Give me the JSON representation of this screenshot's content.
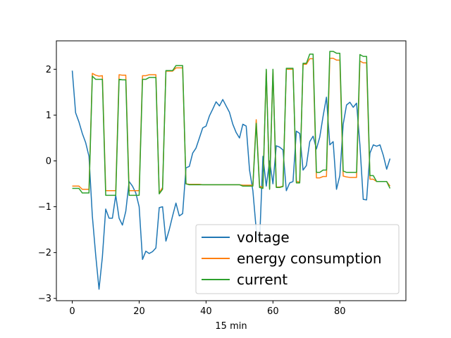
{
  "chart_data": {
    "type": "line",
    "title": "",
    "xlabel": "15 min",
    "ylabel": "",
    "xlim": [
      -4.75,
      99.75
    ],
    "ylim": [
      -3.05,
      2.62
    ],
    "xticks": [
      0,
      20,
      40,
      60,
      80
    ],
    "yticks": [
      -3,
      -2,
      -1,
      0,
      1,
      2
    ],
    "grid": false,
    "legend_position": "lower-right",
    "series": [
      {
        "name": "voltage",
        "color": "#1f77b4",
        "x": [
          0,
          1,
          2,
          3,
          4,
          5,
          6,
          7,
          8,
          9,
          10,
          11,
          12,
          13,
          14,
          15,
          16,
          17,
          18,
          19,
          20,
          21,
          22,
          23,
          24,
          25,
          26,
          27,
          28,
          29,
          30,
          31,
          32,
          33,
          34,
          35,
          36,
          37,
          38,
          39,
          40,
          41,
          42,
          43,
          44,
          45,
          46,
          47,
          48,
          49,
          50,
          51,
          52,
          53,
          54,
          55,
          56,
          57,
          58,
          59,
          60,
          61,
          62,
          63,
          64,
          65,
          66,
          67,
          68,
          69,
          70,
          71,
          72,
          73,
          74,
          75,
          76,
          77,
          78,
          79,
          80,
          81,
          82,
          83,
          84,
          85,
          86,
          87,
          88,
          89,
          90,
          91,
          92,
          93,
          94,
          95
        ],
        "values": [
          1.97,
          1.05,
          0.85,
          0.6,
          0.4,
          0.1,
          -1.2,
          -2.05,
          -2.8,
          -2.1,
          -1.05,
          -1.25,
          -1.25,
          -0.75,
          -1.25,
          -1.4,
          -1.1,
          -0.45,
          -0.55,
          -0.7,
          -1.0,
          -2.15,
          -1.97,
          -2.02,
          -1.98,
          -1.9,
          -1.02,
          -1.0,
          -1.75,
          -1.5,
          -1.2,
          -0.92,
          -1.2,
          -1.15,
          -0.15,
          -0.12,
          0.17,
          0.28,
          0.5,
          0.72,
          0.76,
          0.98,
          1.13,
          1.29,
          1.2,
          1.34,
          1.2,
          1.06,
          0.8,
          0.62,
          0.5,
          0.8,
          0.76,
          -0.2,
          -0.65,
          -1.5,
          -1.77,
          0.1,
          -0.55,
          0.0,
          -0.5,
          0.33,
          0.3,
          0.24,
          -0.65,
          -0.48,
          -0.45,
          0.65,
          0.6,
          -0.2,
          -0.1,
          0.42,
          0.54,
          0.26,
          0.52,
          0.98,
          1.39,
          0.35,
          0.42,
          -0.62,
          -0.32,
          0.8,
          1.22,
          1.28,
          1.17,
          1.26,
          0.35,
          -0.84,
          -0.85,
          0.17,
          0.35,
          0.32,
          0.35,
          0.12,
          -0.18,
          0.05
        ]
      },
      {
        "name": "energy consumption",
        "color": "#ff7f0e",
        "x": [
          0,
          1,
          2,
          3,
          4,
          5,
          6,
          7,
          8,
          9,
          10,
          11,
          12,
          13,
          14,
          15,
          16,
          17,
          18,
          19,
          20,
          21,
          22,
          23,
          24,
          25,
          26,
          27,
          28,
          29,
          30,
          31,
          32,
          33,
          34,
          35,
          36,
          37,
          38,
          39,
          40,
          41,
          42,
          43,
          44,
          45,
          46,
          47,
          48,
          49,
          50,
          51,
          52,
          53,
          54,
          55,
          56,
          57,
          58,
          59,
          60,
          61,
          62,
          63,
          64,
          65,
          66,
          67,
          68,
          69,
          70,
          71,
          72,
          73,
          74,
          75,
          76,
          77,
          78,
          79,
          80,
          81,
          82,
          83,
          84,
          85,
          86,
          87,
          88,
          89,
          90,
          91,
          92,
          93,
          94,
          95
        ],
        "values": [
          -0.55,
          -0.55,
          -0.55,
          -0.62,
          -0.62,
          -0.62,
          1.91,
          1.87,
          1.85,
          1.86,
          -0.65,
          -0.65,
          -0.65,
          -0.65,
          1.88,
          1.87,
          1.87,
          -0.65,
          -0.65,
          -0.65,
          -0.65,
          1.86,
          1.86,
          1.88,
          1.88,
          1.88,
          -0.7,
          -0.58,
          1.96,
          1.96,
          1.96,
          2.03,
          2.03,
          2.03,
          -0.5,
          -0.51,
          -0.51,
          -0.51,
          -0.51,
          -0.52,
          -0.52,
          -0.52,
          -0.52,
          -0.52,
          -0.52,
          -0.52,
          -0.52,
          -0.52,
          -0.52,
          -0.52,
          -0.52,
          -0.53,
          -0.53,
          -0.53,
          -0.53,
          0.9,
          -0.55,
          -0.58,
          1.98,
          -0.6,
          1.98,
          -0.57,
          -0.57,
          -0.55,
          2.0,
          2.0,
          2.0,
          -0.45,
          -0.46,
          2.11,
          2.11,
          2.23,
          2.23,
          -0.37,
          -0.37,
          -0.34,
          -0.34,
          2.24,
          2.24,
          2.2,
          2.2,
          -0.33,
          -0.35,
          -0.36,
          -0.36,
          -0.36,
          2.18,
          2.14,
          2.14,
          -0.4,
          -0.4,
          -0.45,
          -0.45,
          -0.45,
          -0.45,
          -0.55
        ]
      },
      {
        "name": "current",
        "color": "#2ca02c",
        "x": [
          0,
          1,
          2,
          3,
          4,
          5,
          6,
          7,
          8,
          9,
          10,
          11,
          12,
          13,
          14,
          15,
          16,
          17,
          18,
          19,
          20,
          21,
          22,
          23,
          24,
          25,
          26,
          27,
          28,
          29,
          30,
          31,
          32,
          33,
          34,
          35,
          36,
          37,
          38,
          39,
          40,
          41,
          42,
          43,
          44,
          45,
          46,
          47,
          48,
          49,
          50,
          51,
          52,
          53,
          54,
          55,
          56,
          57,
          58,
          59,
          60,
          61,
          62,
          63,
          64,
          65,
          66,
          67,
          68,
          69,
          70,
          71,
          72,
          73,
          74,
          75,
          76,
          77,
          78,
          79,
          80,
          81,
          82,
          83,
          84,
          85,
          86,
          87,
          88,
          89,
          90,
          91,
          92,
          93,
          94,
          95
        ],
        "values": [
          -0.6,
          -0.6,
          -0.6,
          -0.7,
          -0.7,
          -0.7,
          1.85,
          1.78,
          1.78,
          1.78,
          -0.75,
          -0.75,
          -0.75,
          -0.75,
          1.78,
          1.77,
          1.77,
          -0.75,
          -0.75,
          -0.75,
          -0.75,
          1.78,
          1.78,
          1.82,
          1.82,
          1.82,
          -0.72,
          -0.62,
          1.97,
          1.97,
          1.97,
          2.08,
          2.08,
          2.08,
          -0.5,
          -0.52,
          -0.52,
          -0.52,
          -0.52,
          -0.52,
          -0.52,
          -0.52,
          -0.52,
          -0.52,
          -0.52,
          -0.52,
          -0.52,
          -0.52,
          -0.52,
          -0.52,
          -0.52,
          -0.55,
          -0.55,
          -0.55,
          -0.55,
          0.82,
          -0.58,
          -0.6,
          2.0,
          -0.62,
          2.0,
          -0.58,
          -0.58,
          -0.56,
          2.02,
          2.02,
          2.02,
          -0.48,
          -0.48,
          2.13,
          2.13,
          2.33,
          2.33,
          -0.25,
          -0.25,
          -0.2,
          -0.2,
          2.39,
          2.39,
          2.35,
          2.35,
          -0.22,
          -0.25,
          -0.25,
          -0.25,
          -0.25,
          2.32,
          2.28,
          2.28,
          -0.32,
          -0.32,
          -0.45,
          -0.45,
          -0.45,
          -0.45,
          -0.6
        ]
      }
    ]
  }
}
